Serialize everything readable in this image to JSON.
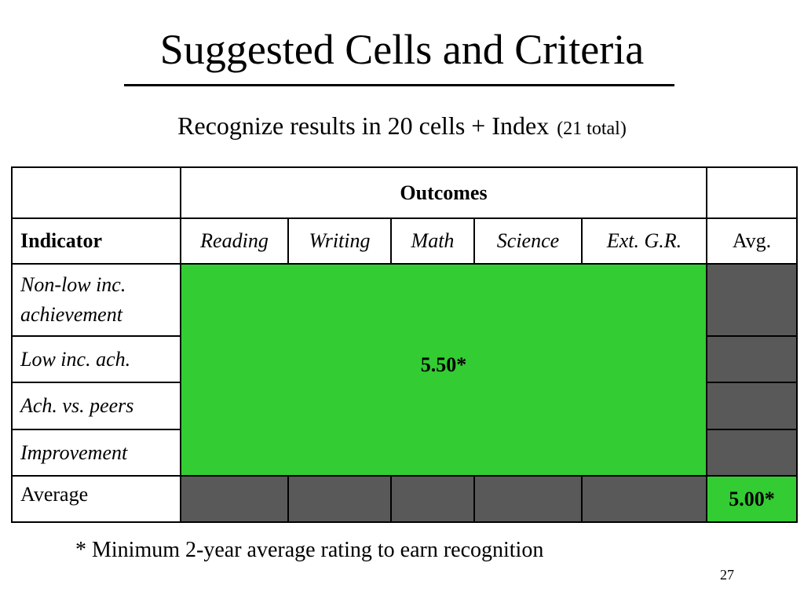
{
  "slide": {
    "title": "Suggested Cells and Criteria",
    "subtitle_main": "Recognize results in 20 cells + Index",
    "subtitle_note": "(21 total)",
    "footnote": "* Minimum 2-year average rating to earn recognition",
    "page_number": "27"
  },
  "table": {
    "outcomes_header": "Outcomes",
    "indicator_header": "Indicator",
    "columns": [
      "Reading",
      "Writing",
      "Math",
      "Science",
      "Ext. G.R."
    ],
    "avg_header": "Avg.",
    "rows": [
      "Non-low inc. achievement",
      "Low inc. ach.",
      "Ach. vs. peers",
      "Improvement"
    ],
    "average_label": "Average",
    "center_value": "5.50*",
    "index_value": "5.00*",
    "colors": {
      "green": "#33cc33",
      "gray": "#595959"
    }
  }
}
